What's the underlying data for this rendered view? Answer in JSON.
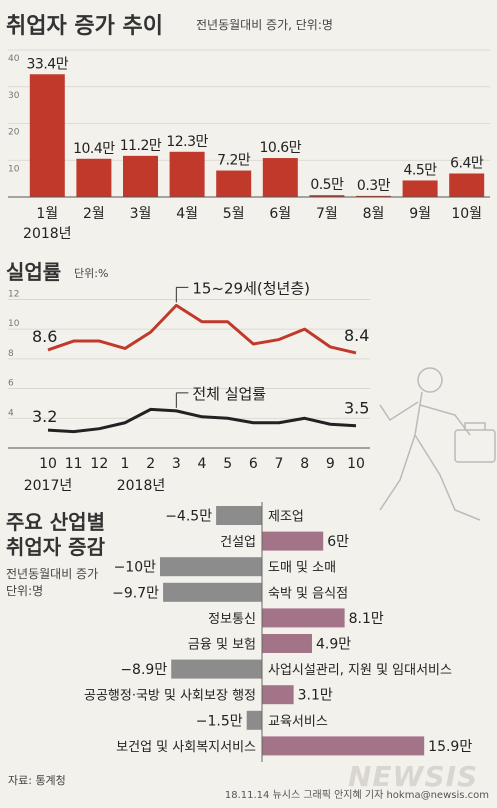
{
  "chart_data": [
    {
      "type": "bar",
      "title": "취업자 증가 추이",
      "subtitle": "전년동월대비 증가, 단위:명",
      "categories": [
        "1월",
        "2월",
        "3월",
        "4월",
        "5월",
        "6월",
        "7월",
        "8월",
        "9월",
        "10월"
      ],
      "year_label": "2018년",
      "values": [
        33.4,
        10.4,
        11.2,
        12.3,
        7.2,
        10.6,
        0.5,
        0.3,
        4.5,
        6.4
      ],
      "value_labels": [
        "33.4만",
        "10.4만",
        "11.2만",
        "12.3만",
        "7.2만",
        "10.6만",
        "0.5만",
        "0.3만",
        "4.5만",
        "6.4만"
      ],
      "yticks": [
        "10",
        "20",
        "30",
        "40"
      ],
      "ylim": [
        0,
        40
      ],
      "color": "#c0392b"
    },
    {
      "type": "line",
      "title": "실업률",
      "subtitle": "단위:%",
      "x": [
        "10",
        "11",
        "12",
        "1",
        "2",
        "3",
        "4",
        "5",
        "6",
        "7",
        "8",
        "9",
        "10"
      ],
      "year_labels": [
        "2017년",
        "2018년"
      ],
      "yticks": [
        "4",
        "6",
        "8",
        "10",
        "12"
      ],
      "ylim": [
        2,
        12.5
      ],
      "series": [
        {
          "name": "15~29세(청년층)",
          "values": [
            8.6,
            9.2,
            9.2,
            8.7,
            9.8,
            11.6,
            10.5,
            10.5,
            9.0,
            9.3,
            10.0,
            8.8,
            8.4
          ],
          "start_label": "8.6",
          "end_label": "8.4",
          "color": "#c0392b"
        },
        {
          "name": "전체 실업률",
          "values": [
            3.2,
            3.1,
            3.3,
            3.7,
            4.6,
            4.5,
            4.1,
            4.0,
            3.7,
            3.7,
            4.0,
            3.6,
            3.5
          ],
          "start_label": "3.2",
          "end_label": "3.5",
          "color": "#222222"
        }
      ]
    },
    {
      "type": "bar",
      "orientation": "horizontal",
      "title": "주요 산업별\n취업자 증감",
      "subtitle": "전년동월대비 증가\n단위:명",
      "categories": [
        "제조업",
        "건설업",
        "도매 및 소매",
        "숙박 및 음식점",
        "정보통신",
        "금융 및 보험",
        "사업시설관리, 지원 및 임대서비스",
        "공공행정·국방 및 사회보장 행정",
        "교육서비스",
        "보건업 및 사회복지서비스"
      ],
      "values": [
        -4.5,
        6,
        -10,
        -9.7,
        8.1,
        4.9,
        -8.9,
        3.1,
        -1.5,
        15.9
      ],
      "value_labels": [
        "−4.5만",
        "6만",
        "−10만",
        "−9.7만",
        "8.1만",
        "4.9만",
        "−8.9만",
        "3.1만",
        "−1.5만",
        "15.9만"
      ],
      "neg_color": "#8c8c8c",
      "pos_color": "#a37487"
    }
  ],
  "footer": {
    "source": "자료: 통계청",
    "credit": "18.11.14 뉴시스 그래픽 안지혜 기자 hokma@newsis.com",
    "logo": "NEWSIS"
  }
}
